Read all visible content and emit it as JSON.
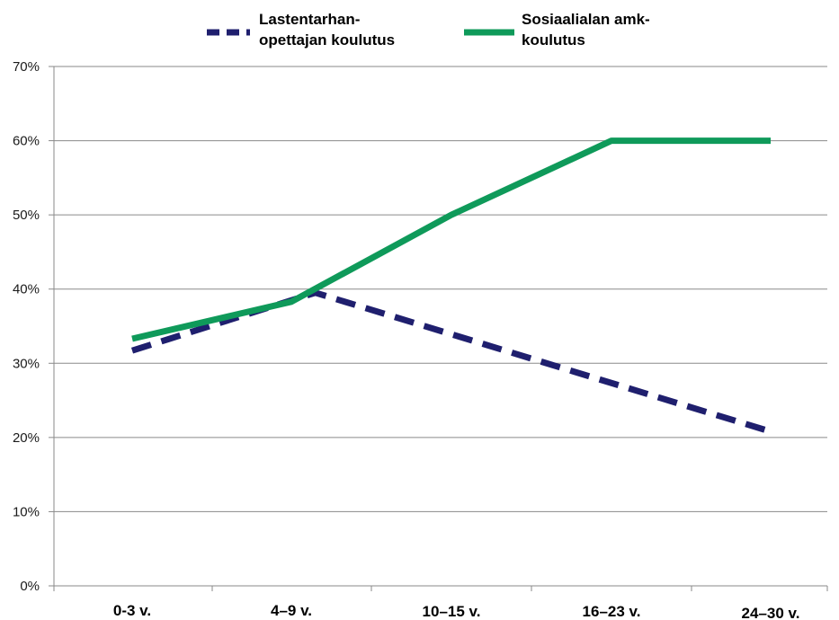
{
  "chart_data": {
    "type": "line",
    "title": "",
    "xlabel": "",
    "ylabel": "",
    "categories": [
      "0-3 v.",
      "4–9 v.",
      "10–15 v.",
      "16–23 v.",
      "24–30 v."
    ],
    "y_ticks": [
      "0%",
      "10%",
      "20%",
      "30%",
      "40%",
      "50%",
      "60%",
      "70%"
    ],
    "ylim": [
      0,
      70
    ],
    "grid": "horizontal",
    "legend_position": "top",
    "series": [
      {
        "name_lines": [
          "Lastentarhan-",
          "opettajan koulutus"
        ],
        "style": "dashed",
        "color": "#1f1f6e",
        "points": [
          {
            "x": 0.0,
            "y": 31.7
          },
          {
            "x": 1.15,
            "y": 39.5
          },
          {
            "x": 4.0,
            "y": 20.8
          }
        ]
      },
      {
        "name_lines": [
          "Sosiaalialan amk-",
          "koulutus"
        ],
        "style": "solid",
        "color": "#0f9a5a",
        "points": [
          {
            "x": 0.0,
            "y": 33.3
          },
          {
            "x": 1.0,
            "y": 38.3
          },
          {
            "x": 2.0,
            "y": 50.0
          },
          {
            "x": 3.0,
            "y": 60.0
          },
          {
            "x": 4.0,
            "y": 60.0
          }
        ]
      }
    ]
  }
}
